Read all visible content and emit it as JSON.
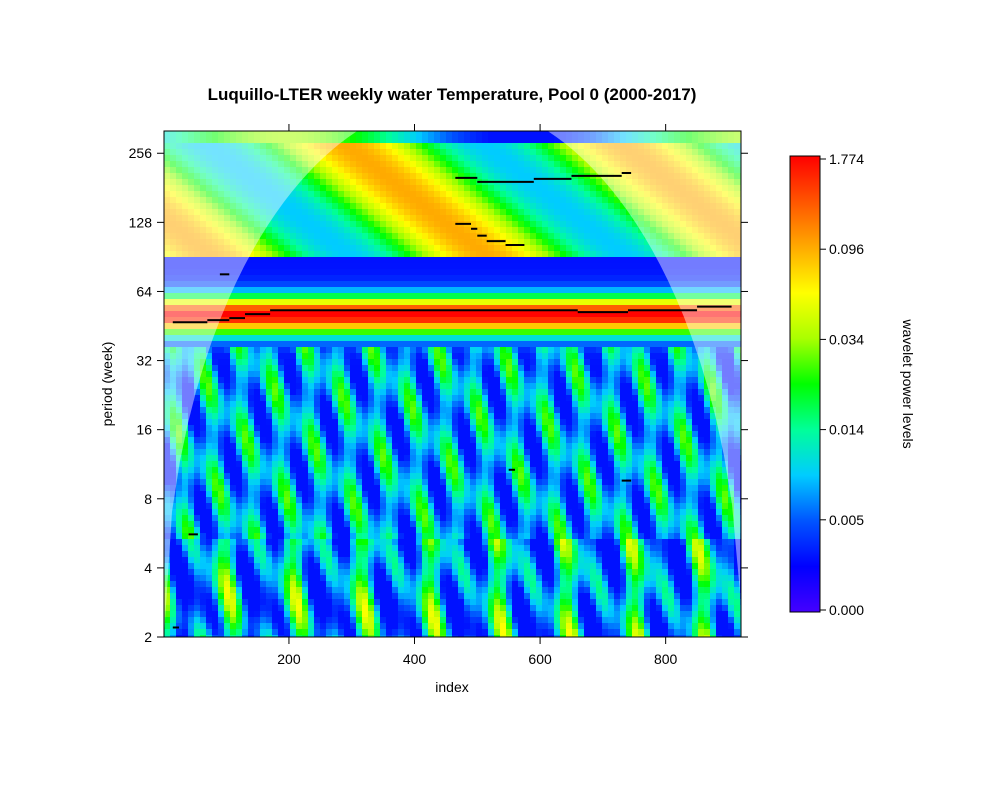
{
  "chart_data": {
    "type": "heatmap",
    "title": "Luquillo-LTER weekly water Temperature, Pool 0 (2000-2017)",
    "xlabel": "index",
    "ylabel": "period (week)",
    "xlim": [
      1,
      920
    ],
    "ylim": [
      2,
      320
    ],
    "y_scale": "log2",
    "x_ticks": [
      200,
      400,
      600,
      800
    ],
    "y_ticks": [
      2,
      4,
      8,
      16,
      32,
      64,
      128,
      256
    ],
    "colorbar": {
      "label": "wavelet power levels",
      "levels": [
        "0.000",
        "0.005",
        "0.014",
        "0.034",
        "0.096",
        "1.774"
      ],
      "colors": [
        "#4400ff",
        "#0000ff",
        "#0055ff",
        "#00ccff",
        "#00ff99",
        "#00ff00",
        "#aaff00",
        "#ffff00",
        "#ffaa00",
        "#ff5500",
        "#ff0000"
      ]
    },
    "annual_band_period": 52,
    "ridge_segments": [
      {
        "x": [
          15,
          70
        ],
        "y": 47
      },
      {
        "x": [
          70,
          105
        ],
        "y": 48
      },
      {
        "x": [
          105,
          130
        ],
        "y": 49
      },
      {
        "x": [
          130,
          170
        ],
        "y": 51
      },
      {
        "x": [
          170,
          660
        ],
        "y": 53
      },
      {
        "x": [
          660,
          740
        ],
        "y": 52
      },
      {
        "x": [
          740,
          850
        ],
        "y": 53
      },
      {
        "x": [
          850,
          905
        ],
        "y": 55
      },
      {
        "x": [
          90,
          105
        ],
        "y": 76
      },
      {
        "x": [
          465,
          500
        ],
        "y": 200
      },
      {
        "x": [
          500,
          590
        ],
        "y": 192
      },
      {
        "x": [
          590,
          650
        ],
        "y": 198
      },
      {
        "x": [
          650,
          730
        ],
        "y": 204
      },
      {
        "x": [
          730,
          745
        ],
        "y": 210
      },
      {
        "x": [
          465,
          490
        ],
        "y": 126
      },
      {
        "x": [
          490,
          500
        ],
        "y": 120
      },
      {
        "x": [
          500,
          515
        ],
        "y": 112
      },
      {
        "x": [
          515,
          545
        ],
        "y": 106
      },
      {
        "x": [
          545,
          575
        ],
        "y": 102
      },
      {
        "x": [
          550,
          560
        ],
        "y": 10.7
      },
      {
        "x": [
          730,
          745
        ],
        "y": 9.6
      },
      {
        "x": [
          40,
          55
        ],
        "y": 5.6
      },
      {
        "x": [
          15,
          25
        ],
        "y": 2.2
      }
    ]
  }
}
